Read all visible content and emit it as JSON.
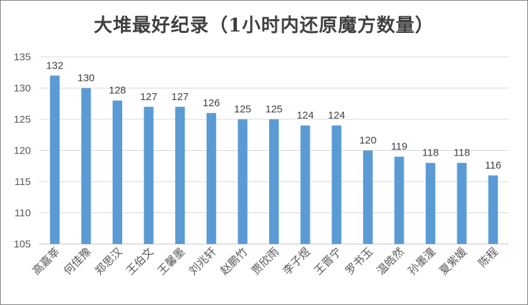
{
  "chart_data": {
    "type": "bar",
    "title": "大堆最好纪录（1小时内还原魔方数量）",
    "xlabel": "",
    "ylabel": "",
    "categories": [
      "高嘉莘",
      "何佳豫",
      "郑思汉",
      "王伯文",
      "王馨墨",
      "刘兆轩",
      "赵鹏竹",
      "贾欣雨",
      "李子煜",
      "王晋宁",
      "罗书玉",
      "温皓然",
      "孙墨潼",
      "夏紫媛",
      "陈程"
    ],
    "values": [
      132,
      130,
      128,
      127,
      127,
      126,
      125,
      125,
      124,
      124,
      120,
      119,
      118,
      118,
      116
    ],
    "ylim": [
      105,
      135
    ],
    "yticks": [
      105,
      110,
      115,
      120,
      125,
      130,
      135
    ],
    "grid": true,
    "legend": "none",
    "bar_color": "#5b9bd5"
  }
}
